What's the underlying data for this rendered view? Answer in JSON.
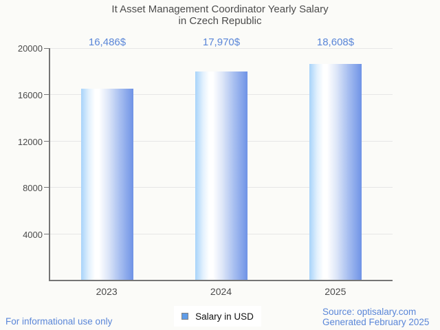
{
  "title": {
    "line1": "It Asset Management Coordinator Yearly Salary",
    "line2": "in Czech Republic"
  },
  "chart_data": {
    "type": "bar",
    "title": "It Asset Management Coordinator Yearly Salary in Czech Republic",
    "categories": [
      "2023",
      "2024",
      "2025"
    ],
    "series": [
      {
        "name": "Salary in USD",
        "values": [
          16486,
          17970,
          18608
        ]
      }
    ],
    "value_labels": [
      "16,486$",
      "17,970$",
      "18,608$"
    ],
    "xlabel": "",
    "ylabel": "",
    "ylim": [
      0,
      20000
    ],
    "yticks": [
      0,
      4000,
      8000,
      12000,
      16000,
      20000
    ],
    "grid": true,
    "legend_position": "bottom-center"
  },
  "yaxis": {
    "tick_labels": [
      "20000",
      "16000",
      "12000",
      "8000",
      "4000"
    ]
  },
  "legend": {
    "label": "Salary in USD"
  },
  "footer": {
    "left": "For informational use only",
    "source_line1": "Source: optisalary.com",
    "source_line2": "Generated February 2025"
  },
  "colors": {
    "accent_text": "#5a86d8",
    "bar_left": "#a7d3fa",
    "bar_right": "#6f93e6",
    "legend_swatch": "#5f9ce8",
    "legend_bg": "#ffffff",
    "axis": "#757575",
    "grid": "#e6e6e6",
    "title": "#4c4c4c",
    "background": "#fbfbf8"
  }
}
